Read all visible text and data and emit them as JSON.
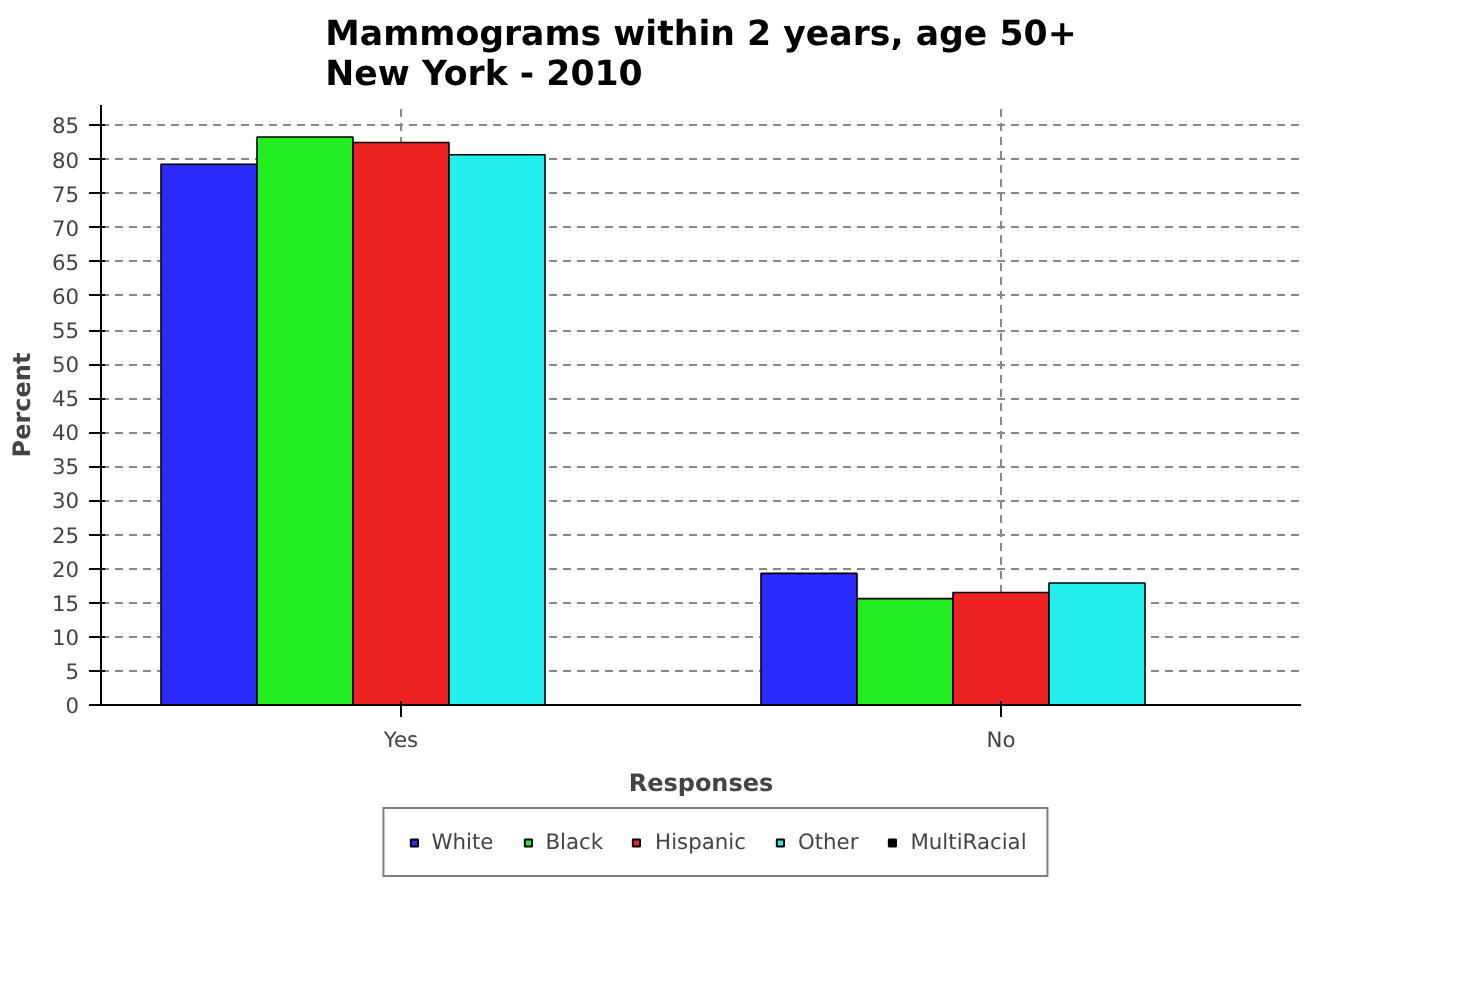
{
  "chart_data": {
    "type": "bar",
    "title": "Mammograms within 2 years, age 50+\nNew York - 2010",
    "xlabel": "Responses",
    "ylabel": "Percent",
    "categories": [
      "Yes",
      "No"
    ],
    "series": [
      {
        "name": "White",
        "color": "#2a2aff",
        "values": [
          79.3,
          19.3
        ]
      },
      {
        "name": "Black",
        "color": "#22ee22",
        "values": [
          83.3,
          15.6
        ]
      },
      {
        "name": "Hispanic",
        "color": "#ee2222",
        "values": [
          82.5,
          16.5
        ]
      },
      {
        "name": "Other",
        "color": "#22eeee",
        "values": [
          80.7,
          17.9
        ]
      },
      {
        "name": "MultiRacial",
        "color": "#000000",
        "values": [
          0,
          0
        ]
      }
    ],
    "ylim": [
      0,
      88
    ],
    "yticks": [
      0,
      5,
      10,
      15,
      20,
      25,
      30,
      35,
      40,
      45,
      50,
      55,
      60,
      65,
      70,
      75,
      80,
      85
    ],
    "grid": true,
    "legend": "bottom"
  }
}
